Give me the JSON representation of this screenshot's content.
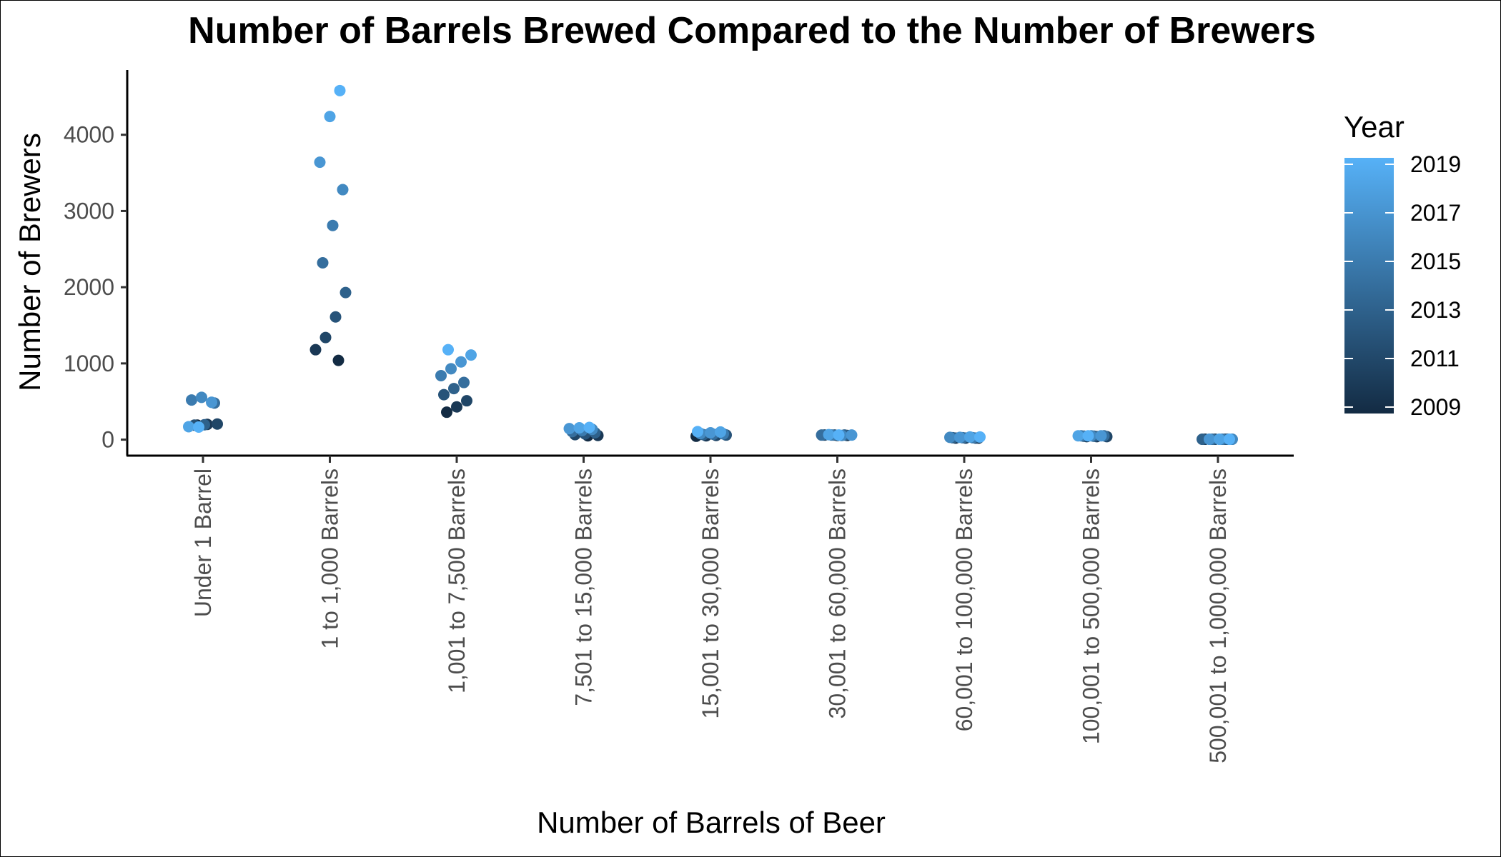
{
  "chart_data": {
    "type": "scatter",
    "title": "Number of Barrels Brewed Compared to the Number of Brewers",
    "xlabel": "Number of Barrels of Beer",
    "ylabel": "Number of Brewers",
    "ylim": [
      -210,
      4850
    ],
    "yticks": [
      0,
      1000,
      2000,
      3000,
      4000
    ],
    "grid": false,
    "categories": [
      "Under 1 Barrel",
      "1 to 1,000 Barrels",
      "1,001 to 7,500 Barrels",
      "7,501 to 15,000 Barrels",
      "15,001 to 30,000 Barrels",
      "30,001 to 60,000 Barrels",
      "60,001 to 100,000 Barrels",
      "100,001 to 500,000 Barrels",
      "500,001 to 1,000,000 Barrels"
    ],
    "color_by": "Year",
    "legend": {
      "title": "Year",
      "placement": "right",
      "ticks": [
        2009,
        2011,
        2013,
        2015,
        2017,
        2019
      ],
      "low_color": "#132b43",
      "high_color": "#56b1f7"
    },
    "points": [
      {
        "category": "Under 1 Barrel",
        "year": 2009,
        "value": 190
      },
      {
        "category": "Under 1 Barrel",
        "year": 2010,
        "value": 200
      },
      {
        "category": "Under 1 Barrel",
        "year": 2011,
        "value": 205
      },
      {
        "category": "Under 1 Barrel",
        "year": 2012,
        "value": 190
      },
      {
        "category": "Under 1 Barrel",
        "year": 2013,
        "value": 195
      },
      {
        "category": "Under 1 Barrel",
        "year": 2014,
        "value": 480
      },
      {
        "category": "Under 1 Barrel",
        "year": 2015,
        "value": 520
      },
      {
        "category": "Under 1 Barrel",
        "year": 2016,
        "value": 555
      },
      {
        "category": "Under 1 Barrel",
        "year": 2017,
        "value": 490
      },
      {
        "category": "Under 1 Barrel",
        "year": 2018,
        "value": 170
      },
      {
        "category": "Under 1 Barrel",
        "year": 2019,
        "value": 165
      },
      {
        "category": "1 to 1,000 Barrels",
        "year": 2009,
        "value": 1040
      },
      {
        "category": "1 to 1,000 Barrels",
        "year": 2010,
        "value": 1180
      },
      {
        "category": "1 to 1,000 Barrels",
        "year": 2011,
        "value": 1340
      },
      {
        "category": "1 to 1,000 Barrels",
        "year": 2012,
        "value": 1610
      },
      {
        "category": "1 to 1,000 Barrels",
        "year": 2013,
        "value": 1930
      },
      {
        "category": "1 to 1,000 Barrels",
        "year": 2014,
        "value": 2320
      },
      {
        "category": "1 to 1,000 Barrels",
        "year": 2015,
        "value": 2810
      },
      {
        "category": "1 to 1,000 Barrels",
        "year": 2016,
        "value": 3280
      },
      {
        "category": "1 to 1,000 Barrels",
        "year": 2017,
        "value": 3640
      },
      {
        "category": "1 to 1,000 Barrels",
        "year": 2018,
        "value": 4240
      },
      {
        "category": "1 to 1,000 Barrels",
        "year": 2019,
        "value": 4580
      },
      {
        "category": "1,001 to 7,500 Barrels",
        "year": 2009,
        "value": 360
      },
      {
        "category": "1,001 to 7,500 Barrels",
        "year": 2010,
        "value": 430
      },
      {
        "category": "1,001 to 7,500 Barrels",
        "year": 2011,
        "value": 510
      },
      {
        "category": "1,001 to 7,500 Barrels",
        "year": 2012,
        "value": 590
      },
      {
        "category": "1,001 to 7,500 Barrels",
        "year": 2013,
        "value": 670
      },
      {
        "category": "1,001 to 7,500 Barrels",
        "year": 2014,
        "value": 750
      },
      {
        "category": "1,001 to 7,500 Barrels",
        "year": 2015,
        "value": 840
      },
      {
        "category": "1,001 to 7,500 Barrels",
        "year": 2016,
        "value": 930
      },
      {
        "category": "1,001 to 7,500 Barrels",
        "year": 2017,
        "value": 1020
      },
      {
        "category": "1,001 to 7,500 Barrels",
        "year": 2018,
        "value": 1110
      },
      {
        "category": "1,001 to 7,500 Barrels",
        "year": 2019,
        "value": 1180
      },
      {
        "category": "7,501 to 15,000 Barrels",
        "year": 2009,
        "value": 50
      },
      {
        "category": "7,501 to 15,000 Barrels",
        "year": 2010,
        "value": 55
      },
      {
        "category": "7,501 to 15,000 Barrels",
        "year": 2011,
        "value": 65
      },
      {
        "category": "7,501 to 15,000 Barrels",
        "year": 2012,
        "value": 75
      },
      {
        "category": "7,501 to 15,000 Barrels",
        "year": 2013,
        "value": 90
      },
      {
        "category": "7,501 to 15,000 Barrels",
        "year": 2014,
        "value": 105
      },
      {
        "category": "7,501 to 15,000 Barrels",
        "year": 2015,
        "value": 120
      },
      {
        "category": "7,501 to 15,000 Barrels",
        "year": 2016,
        "value": 135
      },
      {
        "category": "7,501 to 15,000 Barrels",
        "year": 2017,
        "value": 145
      },
      {
        "category": "7,501 to 15,000 Barrels",
        "year": 2018,
        "value": 155
      },
      {
        "category": "7,501 to 15,000 Barrels",
        "year": 2019,
        "value": 160
      },
      {
        "category": "15,001 to 30,000 Barrels",
        "year": 2009,
        "value": 45
      },
      {
        "category": "15,001 to 30,000 Barrels",
        "year": 2010,
        "value": 50
      },
      {
        "category": "15,001 to 30,000 Barrels",
        "year": 2011,
        "value": 55
      },
      {
        "category": "15,001 to 30,000 Barrels",
        "year": 2012,
        "value": 60
      },
      {
        "category": "15,001 to 30,000 Barrels",
        "year": 2013,
        "value": 65
      },
      {
        "category": "15,001 to 30,000 Barrels",
        "year": 2014,
        "value": 70
      },
      {
        "category": "15,001 to 30,000 Barrels",
        "year": 2015,
        "value": 75
      },
      {
        "category": "15,001 to 30,000 Barrels",
        "year": 2016,
        "value": 80
      },
      {
        "category": "15,001 to 30,000 Barrels",
        "year": 2017,
        "value": 90
      },
      {
        "category": "15,001 to 30,000 Barrels",
        "year": 2018,
        "value": 100
      },
      {
        "category": "15,001 to 30,000 Barrels",
        "year": 2019,
        "value": 105
      },
      {
        "category": "30,001 to 60,000 Barrels",
        "year": 2009,
        "value": 55
      },
      {
        "category": "30,001 to 60,000 Barrels",
        "year": 2010,
        "value": 55
      },
      {
        "category": "30,001 to 60,000 Barrels",
        "year": 2011,
        "value": 60
      },
      {
        "category": "30,001 to 60,000 Barrels",
        "year": 2012,
        "value": 60
      },
      {
        "category": "30,001 to 60,000 Barrels",
        "year": 2013,
        "value": 60
      },
      {
        "category": "30,001 to 60,000 Barrels",
        "year": 2014,
        "value": 60
      },
      {
        "category": "30,001 to 60,000 Barrels",
        "year": 2015,
        "value": 60
      },
      {
        "category": "30,001 to 60,000 Barrels",
        "year": 2016,
        "value": 55
      },
      {
        "category": "30,001 to 60,000 Barrels",
        "year": 2017,
        "value": 60
      },
      {
        "category": "30,001 to 60,000 Barrels",
        "year": 2018,
        "value": 65
      },
      {
        "category": "30,001 to 60,000 Barrels",
        "year": 2019,
        "value": 60
      },
      {
        "category": "60,001 to 100,000 Barrels",
        "year": 2009,
        "value": 20
      },
      {
        "category": "60,001 to 100,000 Barrels",
        "year": 2010,
        "value": 20
      },
      {
        "category": "60,001 to 100,000 Barrels",
        "year": 2011,
        "value": 20
      },
      {
        "category": "60,001 to 100,000 Barrels",
        "year": 2012,
        "value": 20
      },
      {
        "category": "60,001 to 100,000 Barrels",
        "year": 2013,
        "value": 25
      },
      {
        "category": "60,001 to 100,000 Barrels",
        "year": 2014,
        "value": 25
      },
      {
        "category": "60,001 to 100,000 Barrels",
        "year": 2015,
        "value": 25
      },
      {
        "category": "60,001 to 100,000 Barrels",
        "year": 2016,
        "value": 30
      },
      {
        "category": "60,001 to 100,000 Barrels",
        "year": 2017,
        "value": 30
      },
      {
        "category": "60,001 to 100,000 Barrels",
        "year": 2018,
        "value": 35
      },
      {
        "category": "60,001 to 100,000 Barrels",
        "year": 2019,
        "value": 35
      },
      {
        "category": "100,001 to 500,000 Barrels",
        "year": 2009,
        "value": 40
      },
      {
        "category": "100,001 to 500,000 Barrels",
        "year": 2010,
        "value": 40
      },
      {
        "category": "100,001 to 500,000 Barrels",
        "year": 2011,
        "value": 40
      },
      {
        "category": "100,001 to 500,000 Barrels",
        "year": 2012,
        "value": 45
      },
      {
        "category": "100,001 to 500,000 Barrels",
        "year": 2013,
        "value": 45
      },
      {
        "category": "100,001 to 500,000 Barrels",
        "year": 2014,
        "value": 50
      },
      {
        "category": "100,001 to 500,000 Barrels",
        "year": 2015,
        "value": 50
      },
      {
        "category": "100,001 to 500,000 Barrels",
        "year": 2016,
        "value": 50
      },
      {
        "category": "100,001 to 500,000 Barrels",
        "year": 2017,
        "value": 50
      },
      {
        "category": "100,001 to 500,000 Barrels",
        "year": 2018,
        "value": 50
      },
      {
        "category": "100,001 to 500,000 Barrels",
        "year": 2019,
        "value": 50
      },
      {
        "category": "500,001 to 1,000,000 Barrels",
        "year": 2009,
        "value": 5
      },
      {
        "category": "500,001 to 1,000,000 Barrels",
        "year": 2010,
        "value": 5
      },
      {
        "category": "500,001 to 1,000,000 Barrels",
        "year": 2011,
        "value": 5
      },
      {
        "category": "500,001 to 1,000,000 Barrels",
        "year": 2012,
        "value": 5
      },
      {
        "category": "500,001 to 1,000,000 Barrels",
        "year": 2013,
        "value": 5
      },
      {
        "category": "500,001 to 1,000,000 Barrels",
        "year": 2014,
        "value": 5
      },
      {
        "category": "500,001 to 1,000,000 Barrels",
        "year": 2015,
        "value": 5
      },
      {
        "category": "500,001 to 1,000,000 Barrels",
        "year": 2016,
        "value": 5
      },
      {
        "category": "500,001 to 1,000,000 Barrels",
        "year": 2017,
        "value": 5
      },
      {
        "category": "500,001 to 1,000,000 Barrels",
        "year": 2018,
        "value": 5
      },
      {
        "category": "500,001 to 1,000,000 Barrels",
        "year": 2019,
        "value": 5
      }
    ]
  }
}
